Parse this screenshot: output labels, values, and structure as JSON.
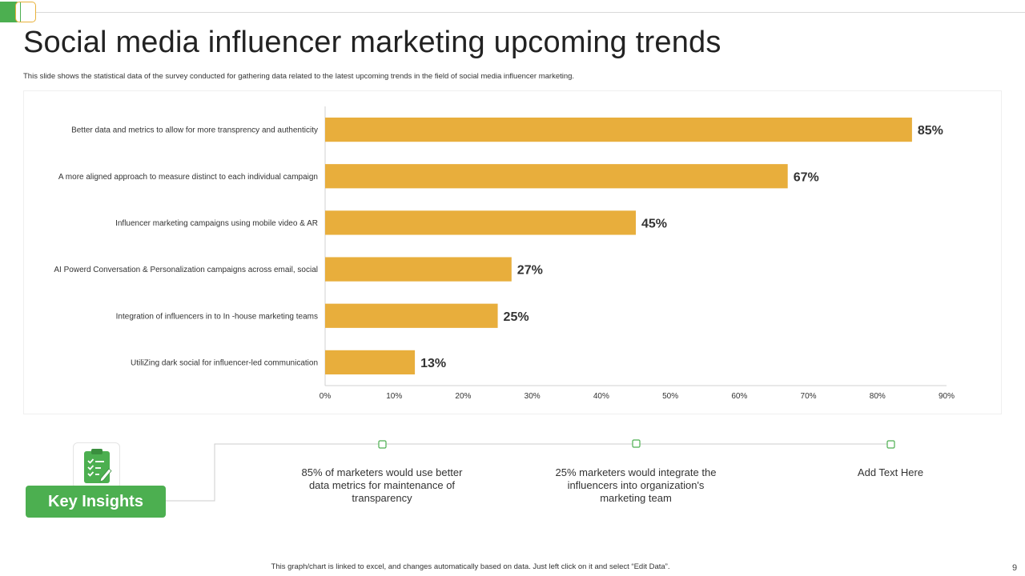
{
  "slide": {
    "title": "Social media influencer marketing upcoming trends",
    "subtitle": "This slide shows the statistical data of the survey conducted for gathering data related to the latest upcoming trends in the field of social media influencer marketing.",
    "footer_note": "This graph/chart is linked to excel, and changes automatically based on data. Just left click on it and select “Edit Data”.",
    "page_number": "9"
  },
  "colors": {
    "bar": "#e8ae3c",
    "accent_green": "#4caf50",
    "axis": "#d0d0d0"
  },
  "chart_data": {
    "type": "bar",
    "orientation": "horizontal",
    "categories": [
      "Better data and metrics to allow for more transprency and authenticity",
      "A more aligned approach to measure distinct to each individual campaign",
      "Influencer marketing campaigns using mobile video & AR",
      "AI Powerd Conversation & Personalization campaigns across email, social",
      "Integration of influencers in to In -house marketing teams",
      "UtiliZing dark social for influencer-led communication"
    ],
    "values": [
      85,
      67,
      45,
      27,
      25,
      13
    ],
    "value_labels": [
      "85%",
      "67%",
      "45%",
      "27%",
      "25%",
      "13%"
    ],
    "xlim": [
      0,
      90
    ],
    "x_ticks": [
      "0%",
      "10%",
      "20%",
      "30%",
      "40%",
      "50%",
      "60%",
      "70%",
      "80%",
      "90%"
    ],
    "title": "",
    "xlabel": "",
    "ylabel": "",
    "grid": false,
    "legend": "none"
  },
  "insights": {
    "badge_label": "Key Insights",
    "icon": "clipboard-check-icon",
    "items": [
      "85% of marketers would use better data metrics for maintenance of transparency",
      "25% marketers would integrate the influencers into organization's marketing team",
      "Add Text Here"
    ]
  }
}
